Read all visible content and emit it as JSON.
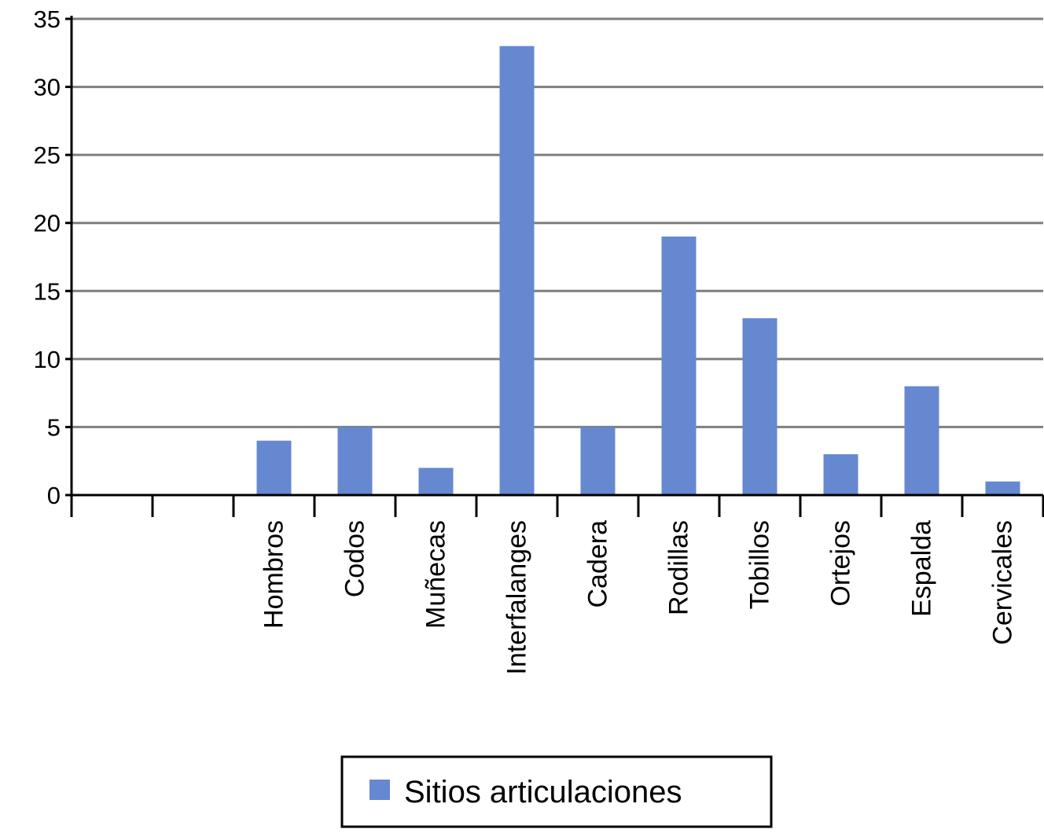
{
  "chart_data": {
    "type": "bar",
    "categories": [
      "",
      "",
      "Hombros",
      "Codos",
      "Muñecas",
      "Interfalanges",
      "Cadera",
      "Rodillas",
      "Tobillos",
      "Ortejos",
      "Espalda",
      "Cervicales"
    ],
    "series": [
      {
        "name": "Sitios articulaciones",
        "values": [
          null,
          null,
          4,
          5,
          2,
          33,
          5,
          19,
          13,
          3,
          8,
          1
        ]
      }
    ],
    "ylim": [
      0,
      35
    ],
    "yticks": [
      0,
      5,
      10,
      15,
      20,
      25,
      30,
      35
    ],
    "grid": true,
    "legend_position": "bottom",
    "title": "",
    "xlabel": "",
    "ylabel": "",
    "colors": {
      "bar": "#6688d0",
      "grid": "#7f7f7f",
      "axis": "#000000"
    }
  }
}
